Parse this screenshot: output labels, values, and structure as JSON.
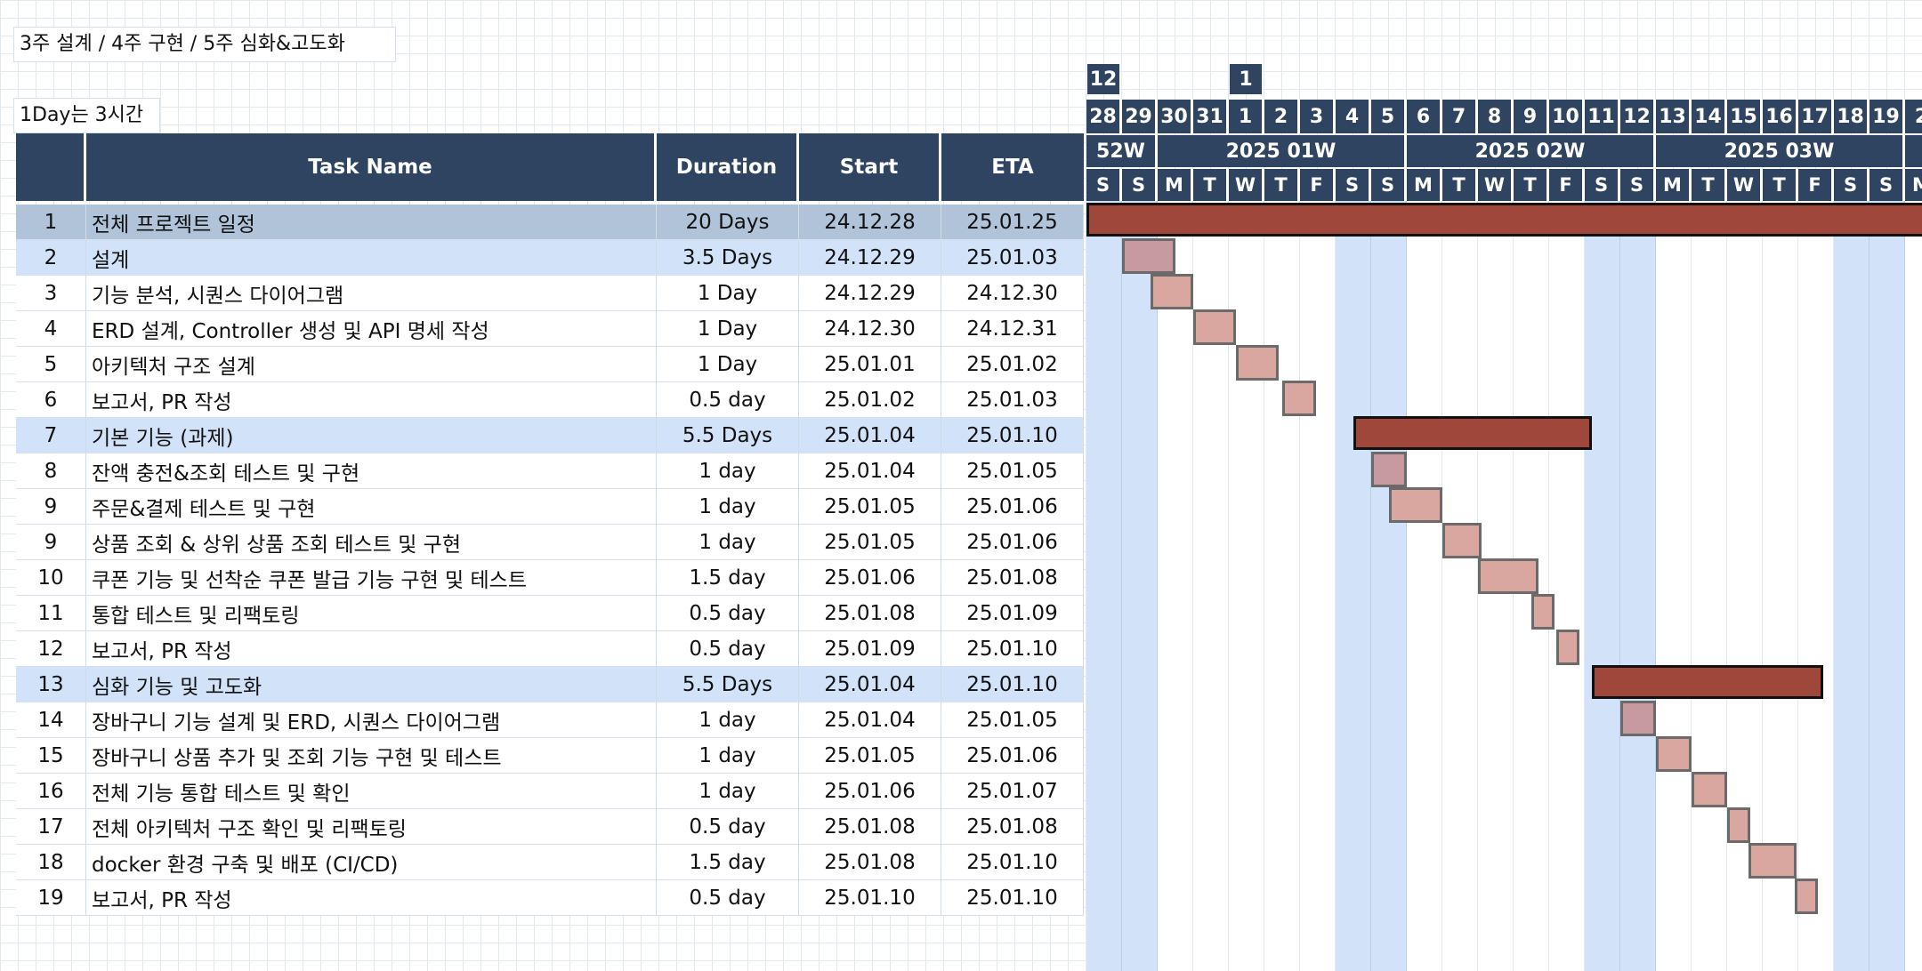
{
  "notes": {
    "schedule": "3주 설계 / 4주 구현 / 5주 심화&고도화",
    "day_hours": "1Day는 3시간"
  },
  "table": {
    "headers": {
      "no": "",
      "name": "Task Name",
      "duration": "Duration",
      "start": "Start",
      "eta": "ETA"
    },
    "rows": [
      {
        "no": "1",
        "name": "전체 프로젝트 일정",
        "duration": "20 Days",
        "start": "24.12.28",
        "eta": "25.01.25",
        "kind": "top"
      },
      {
        "no": "2",
        "name": "설계",
        "duration": "3.5 Days",
        "start": "24.12.29",
        "eta": "25.01.03",
        "kind": "phase"
      },
      {
        "no": "3",
        "name": "기능 분석, 시퀀스 다이어그램",
        "duration": "1 Day",
        "start": "24.12.29",
        "eta": "24.12.30",
        "kind": "task"
      },
      {
        "no": "4",
        "name": "ERD 설계, Controller 생성 및 API 명세 작성",
        "duration": "1 Day",
        "start": "24.12.30",
        "eta": "24.12.31",
        "kind": "task"
      },
      {
        "no": "5",
        "name": "아키텍처 구조 설계",
        "duration": "1 Day",
        "start": "25.01.01",
        "eta": "25.01.02",
        "kind": "task"
      },
      {
        "no": "6",
        "name": "보고서, PR 작성",
        "duration": "0.5 day",
        "start": "25.01.02",
        "eta": "25.01.03",
        "kind": "task"
      },
      {
        "no": "7",
        "name": "기본 기능 (과제)",
        "duration": "5.5 Days",
        "start": "25.01.04",
        "eta": "25.01.10",
        "kind": "phase"
      },
      {
        "no": "8",
        "name": "잔액 충전&조회 테스트 및 구현",
        "duration": "1 day",
        "start": "25.01.04",
        "eta": "25.01.05",
        "kind": "task"
      },
      {
        "no": "9",
        "name": "주문&결제 테스트 및 구현",
        "duration": "1 day",
        "start": "25.01.05",
        "eta": "25.01.06",
        "kind": "task"
      },
      {
        "no": "9",
        "name": "상품 조회 & 상위 상품 조회 테스트 및 구현",
        "duration": "1 day",
        "start": "25.01.05",
        "eta": "25.01.06",
        "kind": "task"
      },
      {
        "no": "10",
        "name": "쿠폰 기능 및 선착순 쿠폰 발급 기능 구현 및 테스트",
        "duration": "1.5 day",
        "start": "25.01.06",
        "eta": "25.01.08",
        "kind": "task"
      },
      {
        "no": "11",
        "name": "통합 테스트 및 리팩토링",
        "duration": "0.5 day",
        "start": "25.01.08",
        "eta": "25.01.09",
        "kind": "task"
      },
      {
        "no": "12",
        "name": "보고서, PR 작성",
        "duration": "0.5 day",
        "start": "25.01.09",
        "eta": "25.01.10",
        "kind": "task"
      },
      {
        "no": "13",
        "name": "심화 기능 및 고도화",
        "duration": "5.5 Days",
        "start": "25.01.04",
        "eta": "25.01.10",
        "kind": "phase"
      },
      {
        "no": "14",
        "name": "장바구니 기능 설계 및 ERD, 시퀀스 다이어그램",
        "duration": "1 day",
        "start": "25.01.04",
        "eta": "25.01.05",
        "kind": "task"
      },
      {
        "no": "15",
        "name": "장바구니 상품 추가 및 조회 기능 구현 및 테스트",
        "duration": "1 day",
        "start": "25.01.05",
        "eta": "25.01.06",
        "kind": "task"
      },
      {
        "no": "16",
        "name": "전체 기능 통합 테스트 및 확인",
        "duration": "1 day",
        "start": "25.01.06",
        "eta": "25.01.07",
        "kind": "task"
      },
      {
        "no": "17",
        "name": "전체 아키텍처 구조 확인 및 리팩토링",
        "duration": "0.5 day",
        "start": "25.01.08",
        "eta": "25.01.08",
        "kind": "task"
      },
      {
        "no": "18",
        "name": "docker 환경 구축 및 배포 (CI/CD)",
        "duration": "1.5 day",
        "start": "25.01.08",
        "eta": "25.01.10",
        "kind": "task"
      },
      {
        "no": "19",
        "name": "보고서, PR 작성",
        "duration": "0.5 day",
        "start": "25.01.10",
        "eta": "25.01.10",
        "kind": "task"
      }
    ]
  },
  "gantt": {
    "months": [
      "12",
      "1"
    ],
    "days": [
      "28",
      "29",
      "30",
      "31",
      "1",
      "2",
      "3",
      "4",
      "5",
      "6",
      "7",
      "8",
      "9",
      "10",
      "11",
      "12",
      "13",
      "14",
      "15",
      "16",
      "17",
      "18",
      "19",
      "2"
    ],
    "weekdays": [
      "S",
      "S",
      "M",
      "T",
      "W",
      "T",
      "F",
      "S",
      "S",
      "M",
      "T",
      "W",
      "T",
      "F",
      "S",
      "S",
      "M",
      "T",
      "W",
      "T",
      "F",
      "S",
      "S",
      "M"
    ],
    "weeks": [
      "52W",
      "2025 01W",
      "2025 02W",
      "2025 03W"
    ],
    "colors": {
      "header": "#2e4460",
      "weekend": "#d2e2f8",
      "phase_bar": "#a0473b",
      "task_bar": "#d9a7a0"
    },
    "bars": [
      {
        "row": 0,
        "type": "main",
        "start_day": 0,
        "span_days": 24.0
      },
      {
        "row": 1,
        "type": "sub-first",
        "start_day": 1.0,
        "span_days": 1.5
      },
      {
        "row": 2,
        "type": "sub",
        "start_day": 1.8,
        "span_days": 1.2
      },
      {
        "row": 3,
        "type": "sub",
        "start_day": 3.0,
        "span_days": 1.2
      },
      {
        "row": 4,
        "type": "sub",
        "start_day": 4.2,
        "span_days": 1.2
      },
      {
        "row": 5,
        "type": "sub",
        "start_day": 5.5,
        "span_days": 0.95
      },
      {
        "row": 6,
        "type": "main",
        "start_day": 7.5,
        "span_days": 6.7
      },
      {
        "row": 7,
        "type": "sub-first",
        "start_day": 8.0,
        "span_days": 1.0
      },
      {
        "row": 8,
        "type": "sub",
        "start_day": 8.5,
        "span_days": 1.5
      },
      {
        "row": 9,
        "type": "sub",
        "start_day": 10.0,
        "span_days": 1.1
      },
      {
        "row": 10,
        "type": "sub",
        "start_day": 11.0,
        "span_days": 1.7
      },
      {
        "row": 11,
        "type": "sub",
        "start_day": 12.5,
        "span_days": 0.65
      },
      {
        "row": 12,
        "type": "sub",
        "start_day": 13.2,
        "span_days": 0.65
      },
      {
        "row": 13,
        "type": "main",
        "start_day": 14.2,
        "span_days": 6.5
      },
      {
        "row": 14,
        "type": "sub-first",
        "start_day": 15.0,
        "span_days": 1.0
      },
      {
        "row": 15,
        "type": "sub",
        "start_day": 16.0,
        "span_days": 1.0
      },
      {
        "row": 16,
        "type": "sub",
        "start_day": 17.0,
        "span_days": 1.0
      },
      {
        "row": 17,
        "type": "sub",
        "start_day": 18.0,
        "span_days": 0.65
      },
      {
        "row": 18,
        "type": "sub",
        "start_day": 18.6,
        "span_days": 1.35
      },
      {
        "row": 19,
        "type": "sub",
        "start_day": 19.9,
        "span_days": 0.65
      }
    ]
  }
}
